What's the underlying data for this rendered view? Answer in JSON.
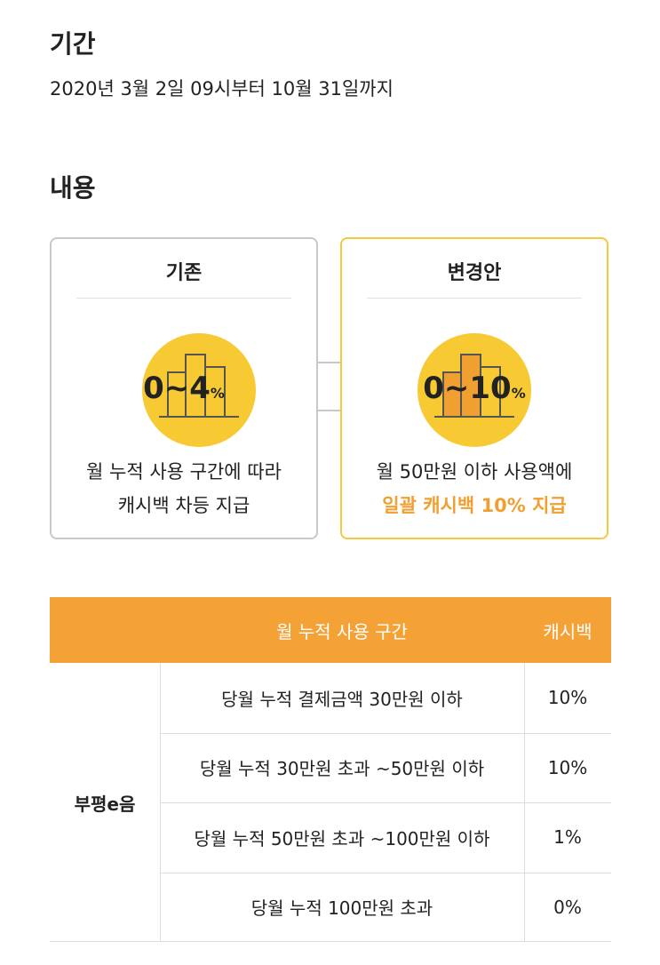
{
  "period": {
    "title": "기간",
    "text": "2020년 3월 2일 09시부터 10월 31일까지"
  },
  "content": {
    "title": "내용",
    "before": {
      "label": "기존",
      "badge_main": "0~4",
      "badge_unit": "%",
      "desc": [
        "월 누적 사용 구간에 따라",
        "캐시백 차등 지급"
      ]
    },
    "after": {
      "label": "변경안",
      "badge_main": "0~10",
      "badge_unit": "%",
      "desc": [
        "월 50만원 이하 사용액에",
        "일괄 캐시백 10% 지급"
      ]
    }
  },
  "table": {
    "header": [
      "월 누적 사용 구간",
      "캐시백"
    ],
    "group": "부평e음",
    "rows": [
      [
        "당월 누적 결제금액 30만원 이하",
        "10%"
      ],
      [
        "당월 누적 30만원 초과 ~50만원 이하",
        "10%"
      ],
      [
        "당월 누적 50만원 초과 ~100만원 이하",
        "1%"
      ],
      [
        "당월 누적 100만원 초과",
        "0%"
      ]
    ]
  }
}
